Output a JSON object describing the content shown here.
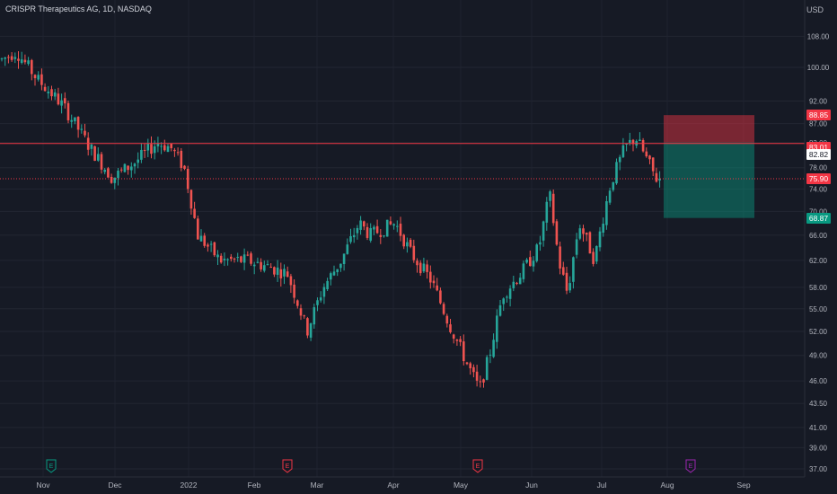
{
  "header": {
    "title": "CRISPR Therapeutics AG, 1D, NASDAQ",
    "currency": "USD"
  },
  "price_axis": {
    "ticks": [
      108.0,
      100.0,
      92.0,
      87.0,
      83.0,
      78.0,
      74.0,
      70.0,
      66.0,
      62.0,
      58.0,
      55.0,
      52.0,
      49.0,
      46.0,
      43.5,
      41.0,
      39.0,
      37.0
    ]
  },
  "time_axis": {
    "labels": [
      "Nov",
      "Dec",
      "2022",
      "Feb",
      "Mar",
      "Apr",
      "May",
      "Jun",
      "Jul",
      "Aug",
      "Sep"
    ]
  },
  "position_tool": {
    "stop_label": "88.85",
    "stop": 88.85,
    "entry_label": "83.01",
    "entry": 83.01,
    "target_label": "68.87",
    "target": 68.87,
    "stop_color": "#f23645",
    "target_color": "#089981"
  },
  "levels": {
    "horizontal_line_label": "82.82",
    "horizontal_line": 82.82,
    "last_price_label": "75.90",
    "last_price": 75.9,
    "line_color": "#f23645"
  },
  "events": [
    {
      "symbol": "E",
      "kind": "earnings",
      "color": "#089981"
    },
    {
      "symbol": "E",
      "kind": "earnings",
      "color": "#f23645"
    },
    {
      "symbol": "E",
      "kind": "earnings",
      "color": "#f23645"
    },
    {
      "symbol": "E",
      "kind": "earnings-upcoming",
      "color": "#9c27b0"
    }
  ],
  "chart_data": {
    "type": "candlestick",
    "title": "CRISPR Therapeutics AG, 1D, NASDAQ",
    "y_scale": "log",
    "ylim": [
      36.5,
      112
    ],
    "grid": true,
    "key_points": [
      {
        "date": "late Oct 2021",
        "close": 102
      },
      {
        "date": "Nov 2021",
        "close": 98
      },
      {
        "date": "late Nov 2021",
        "close": 82
      },
      {
        "date": "Dec 2021",
        "close": 76
      },
      {
        "date": "mid Dec 2021",
        "close": 82
      },
      {
        "date": "early Jan 2022",
        "close": 78
      },
      {
        "date": "Jan 2022",
        "close": 65
      },
      {
        "date": "Feb 2022",
        "close": 61
      },
      {
        "date": "Mar 2022",
        "close": 52
      },
      {
        "date": "Apr 2022",
        "close": 68
      },
      {
        "date": "early May 2022",
        "close": 48
      },
      {
        "date": "mid May 2022",
        "close": 44
      },
      {
        "date": "early Jun 2022",
        "close": 73
      },
      {
        "date": "mid Jun 2022",
        "close": 57
      },
      {
        "date": "Jul 2022",
        "close": 62
      },
      {
        "date": "mid Jul 2022",
        "close": 84
      },
      {
        "date": "end Jul 2022",
        "close": 75.9
      }
    ]
  }
}
